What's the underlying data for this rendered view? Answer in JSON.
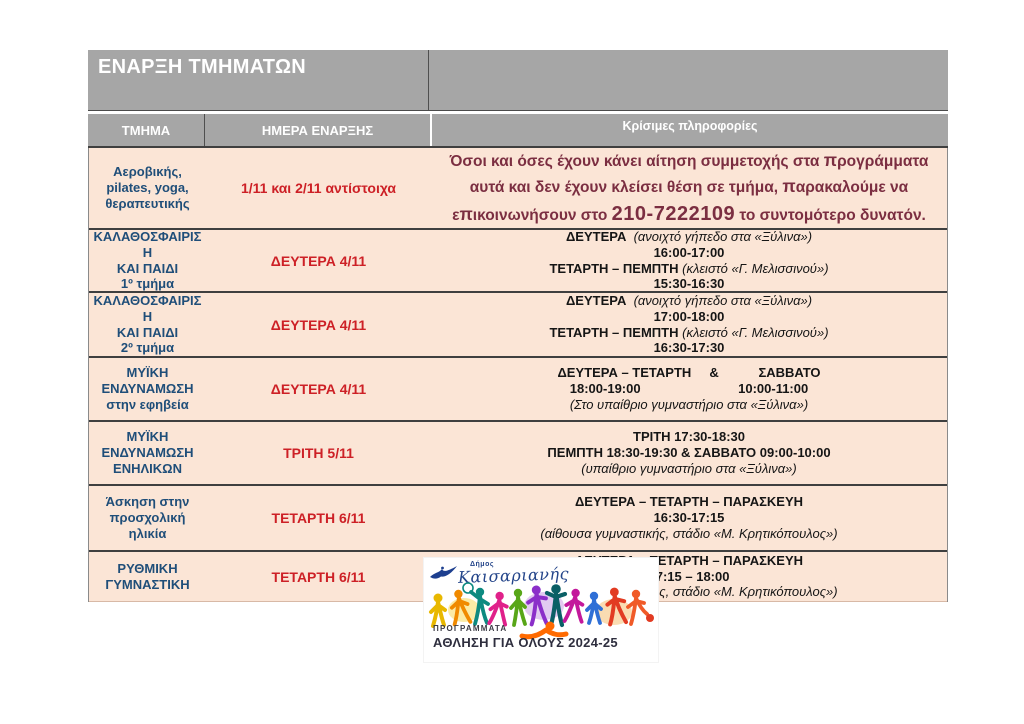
{
  "table": {
    "title": "ΕΝΑΡΞΗ ΤΜΗΜΑΤΩΝ",
    "columns": [
      "ΤΜΗΜΑ",
      "ΗΜΕΡΑ ΕΝΑΡΞΗΣ",
      "Κρίσιμες πληροφορίες"
    ],
    "colors": {
      "header_gray": "#a6a6a6",
      "row_peach": "#fbe5d6",
      "department_blue": "#1f4e79",
      "date_red": "#cd2026",
      "notice_maroon": "#7b2e41",
      "grid_dark": "#3f3f3f"
    },
    "rows": [
      {
        "department_lines": [
          "Αεροβικής,",
          "pilates, yoga,",
          "θεραπευτικής"
        ],
        "start_day": "1/11 και 2/11 αντίστοιχα",
        "info_style": "notice",
        "info_lines": [
          [
            {
              "t": "Όσοι και όσες έχουν κάνει αίτηση συμμετοχής στα ",
              "s": "r"
            },
            {
              "t": "π",
              "s": "pi"
            },
            {
              "t": "ρογράμματα αυτά και δεν έχουν κλείσει θέση σε τμήμα, ",
              "s": "r"
            },
            {
              "t": "π",
              "s": "pi"
            },
            {
              "t": "αρακαλούμε να ε",
              "s": "r"
            },
            {
              "t": "π",
              "s": "pi"
            },
            {
              "t": "ικοινωνήσουν στο ",
              "s": "r"
            },
            {
              "t": "210-7222109",
              "s": "phone"
            },
            {
              "t": " το συντομότερο δυνατόν.",
              "s": "r"
            }
          ]
        ]
      },
      {
        "department_lines": [
          "ΚΑΛΑΘΟΣΦΑΙΡΙΣ",
          "Η",
          "ΚΑΙ ΠΑΙΔΙ",
          "1º τμήμα"
        ],
        "start_day": "ΔΕΥΤΕΡΑ 4/11",
        "info_style": "schedule",
        "info_lines": [
          [
            {
              "t": "ΔΕΥΤΕΡΑ  ",
              "s": "b"
            },
            {
              "t": "(ανοιχτό γήπεδο στα «Ξύλινα»)",
              "s": "i"
            }
          ],
          [
            {
              "t": "16:00-17:00",
              "s": "b"
            }
          ],
          [
            {
              "t": "ΤΕΤΑΡΤΗ – ΠΕΜΠΤΗ ",
              "s": "b"
            },
            {
              "t": "(κλειστό «Γ. Μελισσινού»)",
              "s": "i"
            }
          ],
          [
            {
              "t": "15:30-16:30",
              "s": "b"
            }
          ]
        ]
      },
      {
        "department_lines": [
          "ΚΑΛΑΘΟΣΦΑΙΡΙΣ",
          "Η",
          "ΚΑΙ ΠΑΙΔΙ",
          "2º τμήμα"
        ],
        "start_day": "ΔΕΥΤΕΡΑ 4/11",
        "info_style": "schedule",
        "info_lines": [
          [
            {
              "t": "ΔΕΥΤΕΡΑ  ",
              "s": "b"
            },
            {
              "t": "(ανοιχτό γήπεδο στα «Ξύλινα»)",
              "s": "i"
            }
          ],
          [
            {
              "t": "17:00-18:00",
              "s": "b"
            }
          ],
          [
            {
              "t": "ΤΕΤΑΡΤΗ – ΠΕΜΠΤΗ ",
              "s": "b"
            },
            {
              "t": "(κλειστό «Γ. Μελισσινού»)",
              "s": "i"
            }
          ],
          [
            {
              "t": "16:30-17:30",
              "s": "b"
            }
          ]
        ]
      },
      {
        "department_lines": [
          "ΜΥΪΚΗ",
          "ΕΝΔΥΝΑΜΩΣΗ",
          "στην εφηβεία"
        ],
        "start_day": "ΔΕΥΤΕΡΑ 4/11",
        "info_style": "schedule",
        "info_lines": [
          [
            {
              "t": "ΔΕΥΤΕΡΑ – ΤΕΤΑΡΤΗ     &           ΣΑΒΒΑΤΟ",
              "s": "b"
            }
          ],
          [
            {
              "t": "18:00-19:00                           10:00-11:00",
              "s": "b"
            }
          ],
          [
            {
              "t": "(Στο υπαίθριο γυμναστήριο στα «Ξύλινα»)",
              "s": "i"
            }
          ]
        ]
      },
      {
        "department_lines": [
          "ΜΥΪΚΗ",
          "ΕΝΔΥΝΑΜΩΣΗ",
          "ΕΝΗΛΙΚΩΝ"
        ],
        "start_day": "ΤΡΙΤΗ 5/11",
        "info_style": "schedule",
        "info_lines": [
          [
            {
              "t": "ΤΡΙΤΗ 17:30-18:30",
              "s": "b"
            }
          ],
          [
            {
              "t": "ΠΕΜΠΤΗ 18:30-19:30 & ΣΑΒΒΑΤΟ 09:00-10:00",
              "s": "b"
            }
          ],
          [
            {
              "t": "(υπαίθριο γυμναστήριο στα «Ξύλινα»)",
              "s": "i"
            }
          ]
        ]
      },
      {
        "department_lines": [
          "Άσκηση στην",
          "προσχολική",
          "ηλικία"
        ],
        "start_day": "ΤΕΤΑΡΤΗ 6/11",
        "info_style": "schedule",
        "info_lines": [
          [
            {
              "t": "ΔΕΥΤΕΡΑ – ΤΕΤΑΡΤΗ – ΠΑΡΑΣΚΕΥΗ",
              "s": "b"
            }
          ],
          [
            {
              "t": "16:30-17:15",
              "s": "b"
            }
          ],
          [
            {
              "t": "(αίθουσα γυμναστικής, στάδιο «Μ. Κρητικόπουλος»)",
              "s": "i"
            }
          ]
        ]
      },
      {
        "department_lines": [
          "ΡΥΘΜΙΚΗ",
          "ΓΥΜΝΑΣΤΙΚΗ"
        ],
        "start_day": "ΤΕΤΑΡΤΗ 6/11",
        "info_style": "schedule",
        "info_lines": [
          [
            {
              "t": "ΔΕΥΤΕΡΑ – ΤΕΤΑΡΤΗ – ΠΑΡΑΣΚΕΥΗ",
              "s": "b"
            }
          ],
          [
            {
              "t": "17:15 – 18:00",
              "s": "b"
            }
          ],
          [
            {
              "t": "(αίθουσα γυμναστικής, στάδιο «Μ. Κρητικόπουλος»)",
              "s": "i"
            }
          ]
        ]
      }
    ]
  },
  "logo": {
    "municipality_small": "Δήμος",
    "municipality": "Καισαριανής",
    "program_label": "ΠΡΟΓΡΑΜΜΑΤΑ",
    "program_title": "ΑΘΛΗΣΗ ΓΙΑ ΟΛΟΥΣ 2024-25"
  }
}
